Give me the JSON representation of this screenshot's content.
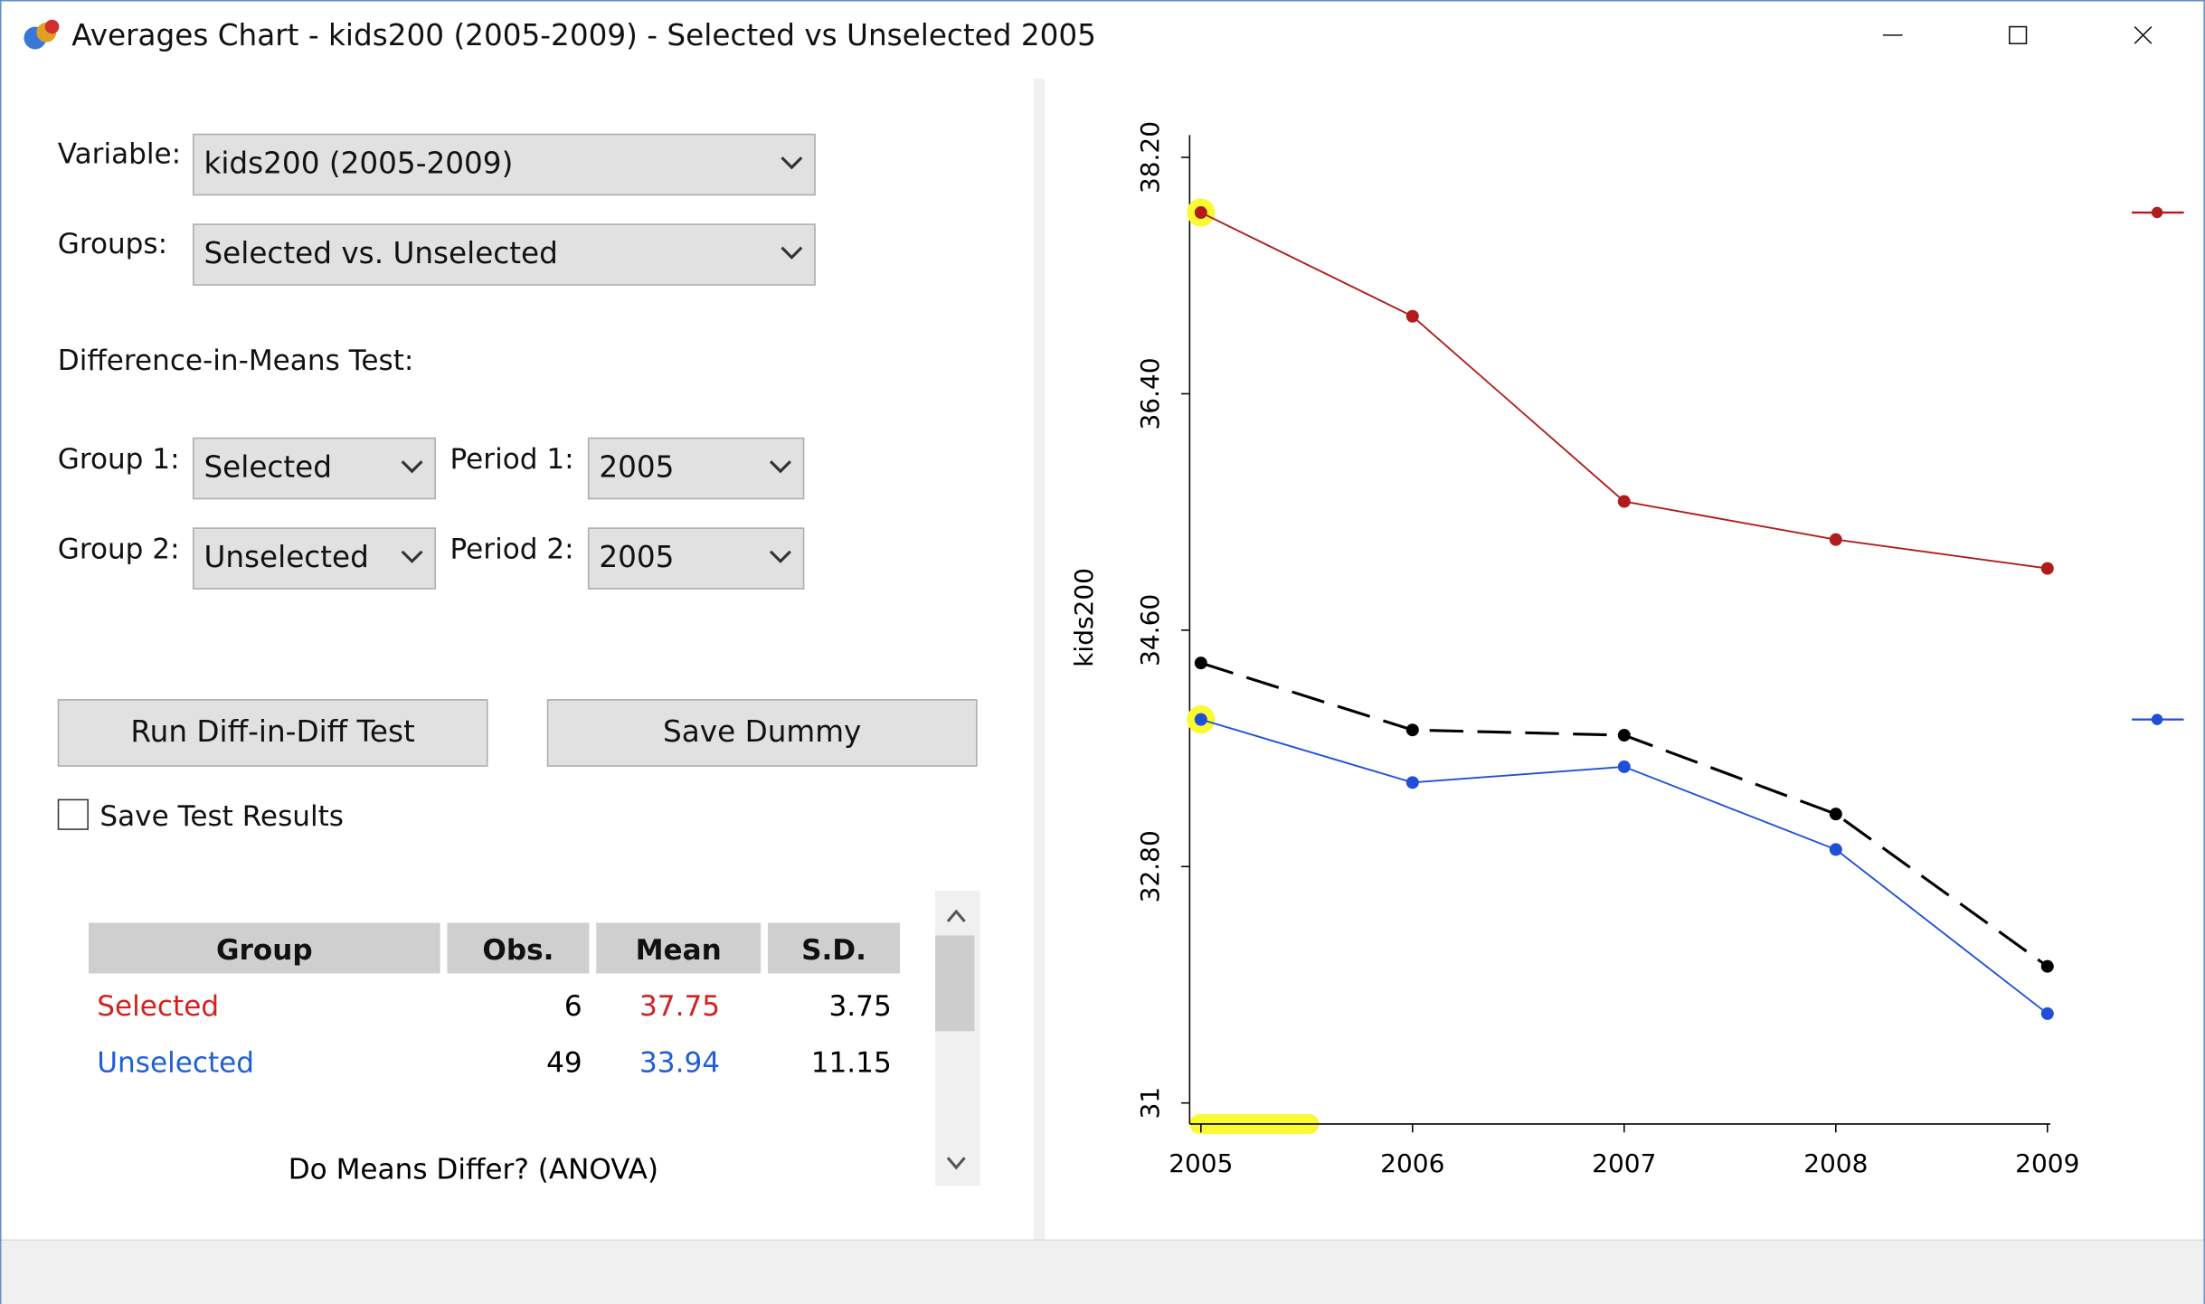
{
  "window": {
    "title": "Averages Chart - kids200 (2005-2009) - Selected vs Unselected 2005"
  },
  "form": {
    "variable_label": "Variable:",
    "variable_value": "kids200 (2005-2009)",
    "groups_label": "Groups:",
    "groups_value": "Selected vs. Unselected",
    "test_heading": "Difference-in-Means Test:",
    "group1_label": "Group 1:",
    "group1_value": "Selected",
    "period1_label": "Period 1:",
    "period1_value": "2005",
    "group2_label": "Group 2:",
    "group2_value": "Unselected",
    "period2_label": "Period 2:",
    "period2_value": "2005",
    "run_button": "Run Diff-in-Diff Test",
    "save_button": "Save Dummy",
    "save_results": "Save Test Results"
  },
  "table": {
    "columns": [
      "Group",
      "Obs.",
      "Mean",
      "S.D."
    ],
    "rows": [
      [
        "Selected",
        6,
        37.75,
        3.75
      ],
      [
        "Unselected",
        49,
        33.94,
        11.15
      ]
    ],
    "anova": "Do Means Differ? (ANOVA)"
  },
  "chart_data": {
    "type": "line",
    "y_label": "kids200",
    "categories": [
      "2005",
      "2006",
      "2007",
      "2008",
      "2009"
    ],
    "ylim": [
      30.84,
      38.37
    ],
    "yticks": [
      31,
      {
        "value": 32.8,
        "label": "32.80"
      },
      {
        "value": 34.6,
        "label": "34.60"
      },
      {
        "value": 36.4,
        "label": "36.40"
      },
      {
        "value": 38.2,
        "label": "38.20"
      }
    ],
    "series": [
      {
        "color": "#b01c1c",
        "values": [
          37.78,
          36.99,
          35.58,
          35.29,
          35.07
        ]
      },
      {
        "color": "#000000",
        "dashed": true,
        "values": [
          34.35,
          33.84,
          33.8,
          33.2,
          32.04
        ]
      },
      {
        "color": "#1f4fd8",
        "values": [
          33.92,
          33.44,
          33.56,
          32.93,
          31.68
        ]
      }
    ]
  }
}
